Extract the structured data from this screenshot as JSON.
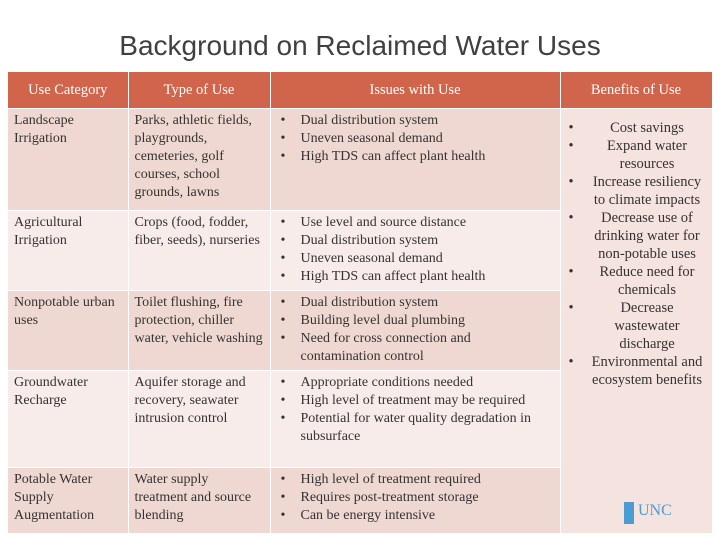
{
  "title": "Background on Reclaimed Water Uses",
  "table": {
    "headers": [
      "Use Category",
      "Type of Use",
      "Issues with Use",
      "Benefits of Use"
    ],
    "rows": [
      {
        "category": "Landscape Irrigation",
        "type": "Parks, athletic fields, playgrounds, cemeteries, golf courses, school grounds, lawns",
        "issues": [
          "Dual distribution system",
          "Uneven seasonal demand",
          "High TDS can affect plant health"
        ]
      },
      {
        "category": "Agricultural Irrigation",
        "type": "Crops (food, fodder, fiber, seeds), nurseries",
        "issues": [
          "Use level and source distance",
          "Dual distribution system",
          "Uneven seasonal demand",
          "High TDS can affect plant health"
        ]
      },
      {
        "category": "Nonpotable urban uses",
        "type": "Toilet flushing, fire protection, chiller water, vehicle washing",
        "issues": [
          "Dual distribution system",
          "Building level dual plumbing",
          "Need for cross connection and contamination control"
        ]
      },
      {
        "category": "Groundwater Recharge",
        "type": "Aquifer storage and recovery, seawater intrusion control",
        "issues": [
          "Appropriate conditions needed",
          "High level of treatment may be required",
          "Potential for water quality degradation in subsurface"
        ]
      },
      {
        "category": "Potable Water Supply Augmentation",
        "type": "Water supply treatment and source blending",
        "issues": [
          "High level of treatment required",
          "Requires post-treatment storage",
          "Can be energy intensive"
        ]
      }
    ],
    "benefits": [
      "Cost savings",
      "Expand water resources",
      "Increase resiliency to climate impacts",
      "Decrease use of drinking water for non-potable uses",
      "Reduce need for chemicals",
      "Decrease wastewater discharge",
      "Environmental and ecosystem benefits"
    ]
  },
  "logo": "UNC"
}
